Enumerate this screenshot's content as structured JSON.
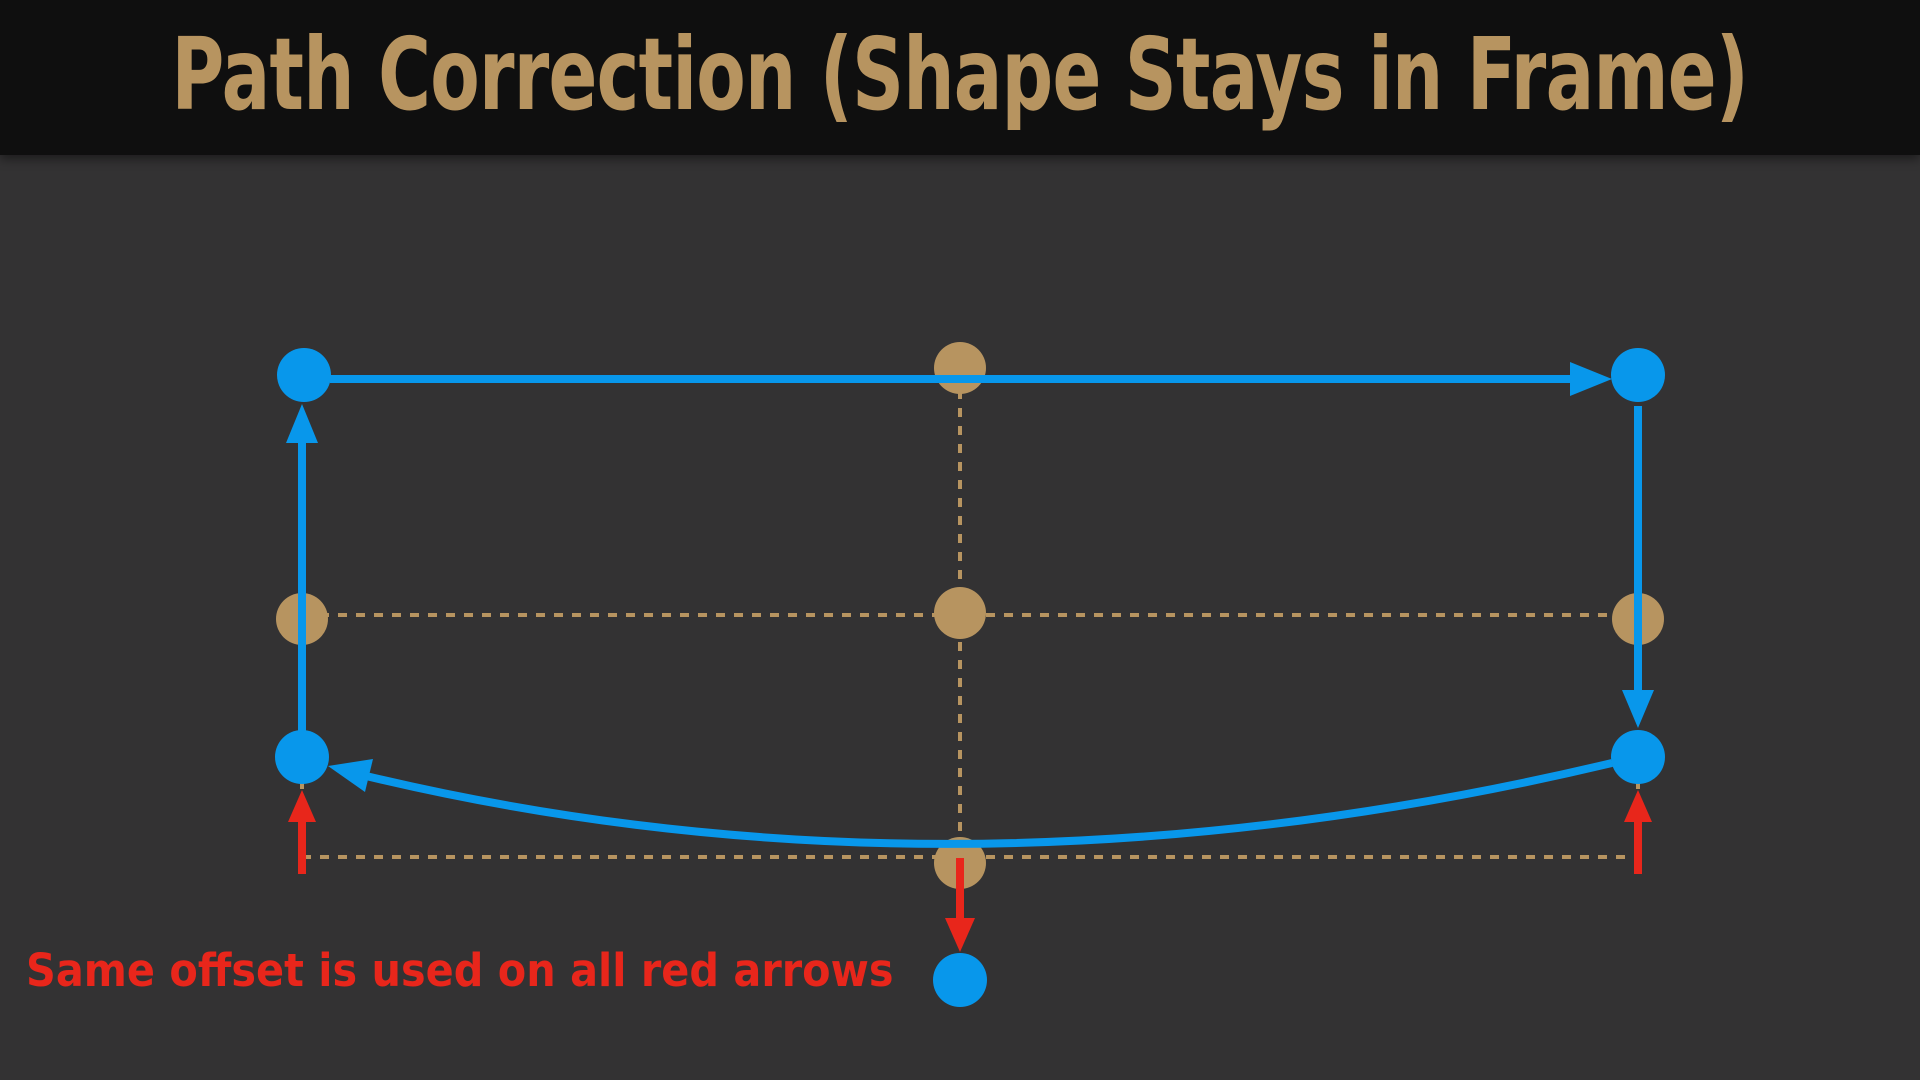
{
  "title": "Path Correction (Shape Stays in Frame)",
  "note": "Same offset is used on all red arrows",
  "colors": {
    "background": "#333233",
    "title_bar": "#0f0f0f",
    "gold": "#b79460",
    "blue": "#0897eb",
    "red": "#e8261b"
  }
}
